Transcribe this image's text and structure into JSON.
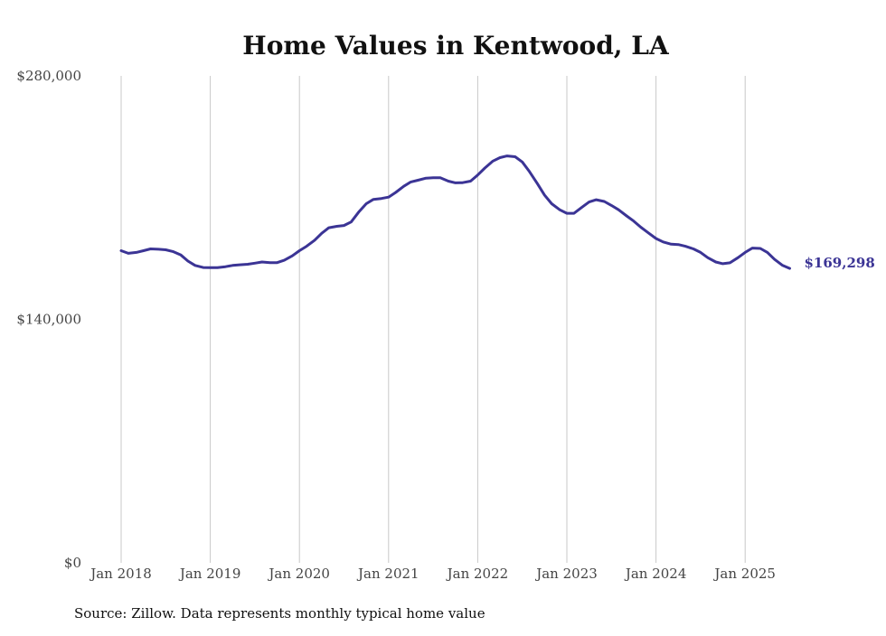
{
  "chart_data": {
    "type": "line",
    "title": "Home Values in Kentwood, LA",
    "xlabel": "",
    "ylabel": "",
    "ylim": [
      0,
      280000
    ],
    "y_ticks": [
      {
        "value": 0,
        "label": "$0"
      },
      {
        "value": 140000,
        "label": "$140,000"
      },
      {
        "value": 280000,
        "label": "$280,000"
      }
    ],
    "x_ticks": [
      {
        "value": 2018,
        "label": "Jan 2018"
      },
      {
        "value": 2019,
        "label": "Jan 2019"
      },
      {
        "value": 2020,
        "label": "Jan 2020"
      },
      {
        "value": 2021,
        "label": "Jan 2021"
      },
      {
        "value": 2022,
        "label": "Jan 2022"
      },
      {
        "value": 2023,
        "label": "Jan 2023"
      },
      {
        "value": 2024,
        "label": "Jan 2024"
      },
      {
        "value": 2025,
        "label": "Jan 2025"
      }
    ],
    "xlim": [
      2018,
      2025.5
    ],
    "grid": {
      "vertical": true,
      "horizontal": false
    },
    "line_color": "#3b3495",
    "end_label": "$169,298",
    "series": [
      {
        "points": [
          [
            2018.0,
            179500
          ],
          [
            2018.08,
            178000
          ],
          [
            2018.17,
            178500
          ],
          [
            2018.25,
            179500
          ],
          [
            2018.33,
            180500
          ],
          [
            2018.42,
            180300
          ],
          [
            2018.5,
            180000
          ],
          [
            2018.58,
            179000
          ],
          [
            2018.67,
            177000
          ],
          [
            2018.75,
            173500
          ],
          [
            2018.83,
            171000
          ],
          [
            2018.92,
            169800
          ],
          [
            2019.0,
            169700
          ],
          [
            2019.08,
            169700
          ],
          [
            2019.17,
            170300
          ],
          [
            2019.25,
            171000
          ],
          [
            2019.33,
            171400
          ],
          [
            2019.42,
            171700
          ],
          [
            2019.5,
            172300
          ],
          [
            2019.58,
            173000
          ],
          [
            2019.67,
            172600
          ],
          [
            2019.75,
            172600
          ],
          [
            2019.83,
            174000
          ],
          [
            2019.92,
            176500
          ],
          [
            2020.0,
            179500
          ],
          [
            2020.08,
            182000
          ],
          [
            2020.17,
            185500
          ],
          [
            2020.25,
            189500
          ],
          [
            2020.33,
            192700
          ],
          [
            2020.42,
            193500
          ],
          [
            2020.5,
            194000
          ],
          [
            2020.58,
            196000
          ],
          [
            2020.67,
            202000
          ],
          [
            2020.75,
            206500
          ],
          [
            2020.83,
            209000
          ],
          [
            2020.92,
            209500
          ],
          [
            2021.0,
            210300
          ],
          [
            2021.08,
            213000
          ],
          [
            2021.17,
            216500
          ],
          [
            2021.25,
            219000
          ],
          [
            2021.33,
            220000
          ],
          [
            2021.42,
            221200
          ],
          [
            2021.5,
            221400
          ],
          [
            2021.58,
            221400
          ],
          [
            2021.67,
            219500
          ],
          [
            2021.75,
            218500
          ],
          [
            2021.83,
            218600
          ],
          [
            2021.92,
            219500
          ],
          [
            2022.0,
            223000
          ],
          [
            2022.08,
            227000
          ],
          [
            2022.17,
            231000
          ],
          [
            2022.25,
            233000
          ],
          [
            2022.33,
            234000
          ],
          [
            2022.42,
            233500
          ],
          [
            2022.5,
            230500
          ],
          [
            2022.58,
            225000
          ],
          [
            2022.67,
            218000
          ],
          [
            2022.75,
            211500
          ],
          [
            2022.83,
            206500
          ],
          [
            2022.92,
            203000
          ],
          [
            2023.0,
            201000
          ],
          [
            2023.08,
            201000
          ],
          [
            2023.17,
            204500
          ],
          [
            2023.25,
            207500
          ],
          [
            2023.33,
            208800
          ],
          [
            2023.42,
            207800
          ],
          [
            2023.5,
            205500
          ],
          [
            2023.58,
            203000
          ],
          [
            2023.67,
            199500
          ],
          [
            2023.75,
            196500
          ],
          [
            2023.83,
            193000
          ],
          [
            2023.92,
            189500
          ],
          [
            2024.0,
            186500
          ],
          [
            2024.08,
            184500
          ],
          [
            2024.17,
            183200
          ],
          [
            2024.25,
            183000
          ],
          [
            2024.33,
            182000
          ],
          [
            2024.42,
            180500
          ],
          [
            2024.5,
            178500
          ],
          [
            2024.58,
            175500
          ],
          [
            2024.67,
            173000
          ],
          [
            2024.75,
            172000
          ],
          [
            2024.83,
            172500
          ],
          [
            2024.92,
            175500
          ],
          [
            2025.0,
            178500
          ],
          [
            2025.08,
            181000
          ],
          [
            2025.17,
            180800
          ],
          [
            2025.25,
            178500
          ],
          [
            2025.33,
            174500
          ],
          [
            2025.42,
            171000
          ],
          [
            2025.5,
            169298
          ]
        ]
      }
    ]
  },
  "footer": {
    "source": "Source: Zillow. Data represents monthly typical home value"
  }
}
